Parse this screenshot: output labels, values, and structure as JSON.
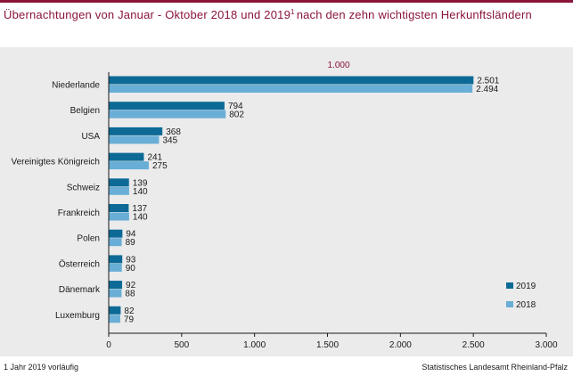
{
  "title": {
    "part1": "Übernachtungen von Januar - Oktober 2018 und 2019",
    "sup": "1",
    "part2": "nach den zehn wichtigsten Herkunftsländern"
  },
  "footnote": "1 Jahr 2019 vorläufig",
  "source": "Statistisches Landesamt Rheinland-Pfalz",
  "colors": {
    "accent": "#8a1538",
    "series_2019": "#0d6a96",
    "series_2018": "#69aed6",
    "panel_bg": "#ebebeb"
  },
  "chart_data": {
    "type": "bar",
    "orientation": "horizontal",
    "unit_label": "1.000",
    "categories": [
      "Niederlande",
      "Belgien",
      "USA",
      "Vereinigtes Königreich",
      "Schweiz",
      "Frankreich",
      "Polen",
      "Österreich",
      "Dänemark",
      "Luxemburg"
    ],
    "series": [
      {
        "name": "2019",
        "values": [
          2501,
          794,
          368,
          241,
          139,
          137,
          94,
          93,
          92,
          82
        ],
        "labels": [
          "2.501",
          "794",
          "368",
          "241",
          "139",
          "137",
          "94",
          "93",
          "92",
          "82"
        ]
      },
      {
        "name": "2018",
        "values": [
          2494,
          802,
          345,
          275,
          140,
          140,
          89,
          90,
          88,
          79
        ],
        "labels": [
          "2.494",
          "802",
          "345",
          "275",
          "140",
          "140",
          "89",
          "90",
          "88",
          "79"
        ]
      }
    ],
    "xlim": [
      0,
      3000
    ],
    "xticks": [
      0,
      500,
      1000,
      1500,
      2000,
      2500,
      3000
    ],
    "xtick_labels": [
      "0",
      "500",
      "1.000",
      "1.500",
      "2.000",
      "2.500",
      "3.000"
    ],
    "grid": false,
    "legend_position": "bottom-right"
  }
}
